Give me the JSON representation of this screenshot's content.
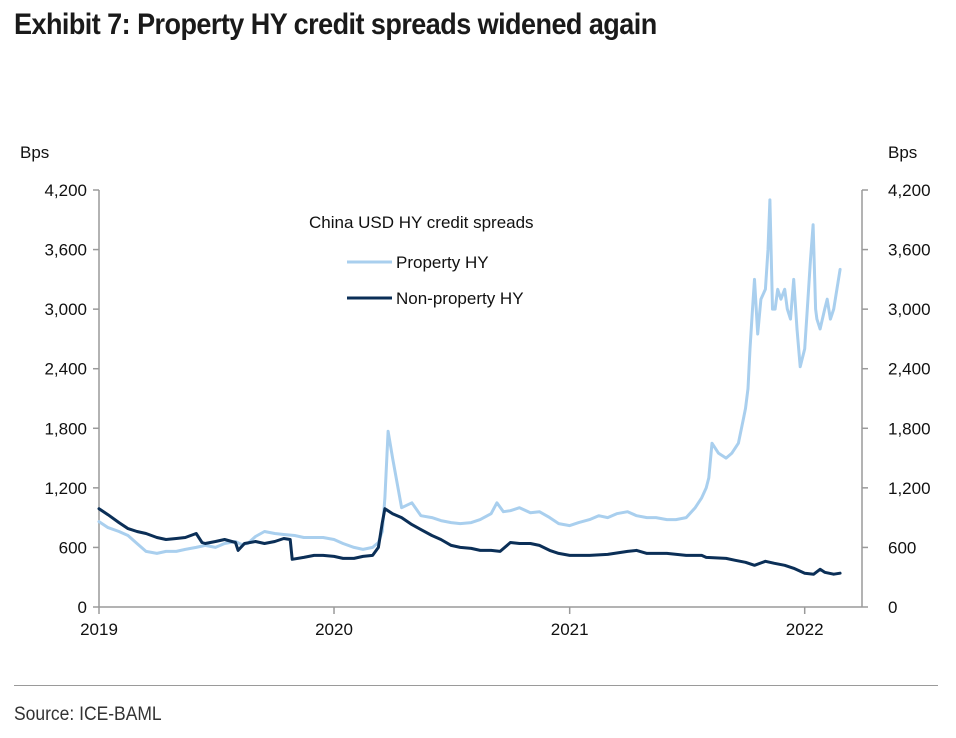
{
  "header": {
    "title": "Exhibit 7: Property HY credit spreads widened again"
  },
  "footer": {
    "source": "Source: ICE-BAML"
  },
  "chart_data": {
    "type": "line",
    "title": "Exhibit 7: Property HY credit spreads widened again",
    "legend_title": "China USD HY credit spreads",
    "legend_placement": "top-center",
    "left_axis_unit": "Bps",
    "right_axis_unit": "Bps",
    "ylim": [
      0,
      4200
    ],
    "yticks": [
      "0",
      "600",
      "1,200",
      "1,800",
      "2,400",
      "3,000",
      "3,600",
      "4,200"
    ],
    "ytick_values": [
      0,
      600,
      1200,
      1800,
      2400,
      3000,
      3600,
      4200
    ],
    "xlim": [
      "2019-01-01",
      "2022-03-31"
    ],
    "xticks": [
      "2019",
      "2020",
      "2021",
      "2022"
    ],
    "xtick_dates": [
      "2019-01-01",
      "2020-01-01",
      "2021-01-01",
      "2022-01-01"
    ],
    "grid": false,
    "colors": {
      "property": "#a9cfee",
      "nonproperty": "#0b2f57",
      "axis": "#9a9a9a"
    },
    "series": [
      {
        "name": "Property HY",
        "x": [
          "2019-01-01",
          "2019-01-15",
          "2019-02-01",
          "2019-02-15",
          "2019-03-01",
          "2019-03-15",
          "2019-04-01",
          "2019-04-15",
          "2019-05-01",
          "2019-05-15",
          "2019-06-01",
          "2019-06-15",
          "2019-07-01",
          "2019-07-15",
          "2019-08-01",
          "2019-08-10",
          "2019-08-20",
          "2019-09-01",
          "2019-09-15",
          "2019-10-01",
          "2019-10-15",
          "2019-11-01",
          "2019-11-15",
          "2019-12-01",
          "2019-12-15",
          "2020-01-01",
          "2020-01-15",
          "2020-02-01",
          "2020-02-15",
          "2020-03-01",
          "2020-03-10",
          "2020-03-16",
          "2020-03-20",
          "2020-03-25",
          "2020-04-01",
          "2020-04-15",
          "2020-05-01",
          "2020-05-15",
          "2020-06-01",
          "2020-06-15",
          "2020-07-01",
          "2020-07-15",
          "2020-08-01",
          "2020-08-15",
          "2020-09-01",
          "2020-09-10",
          "2020-09-20",
          "2020-10-01",
          "2020-10-15",
          "2020-11-01",
          "2020-11-15",
          "2020-12-01",
          "2020-12-15",
          "2021-01-01",
          "2021-01-15",
          "2021-02-01",
          "2021-02-15",
          "2021-03-01",
          "2021-03-15",
          "2021-04-01",
          "2021-04-15",
          "2021-05-01",
          "2021-05-15",
          "2021-06-01",
          "2021-06-15",
          "2021-07-01",
          "2021-07-15",
          "2021-07-25",
          "2021-08-01",
          "2021-08-05",
          "2021-08-10",
          "2021-08-20",
          "2021-09-01",
          "2021-09-10",
          "2021-09-20",
          "2021-09-28",
          "2021-10-01",
          "2021-10-05",
          "2021-10-08",
          "2021-10-12",
          "2021-10-15",
          "2021-10-20",
          "2021-10-25",
          "2021-11-01",
          "2021-11-05",
          "2021-11-08",
          "2021-11-12",
          "2021-11-16",
          "2021-11-20",
          "2021-11-25",
          "2021-12-01",
          "2021-12-05",
          "2021-12-10",
          "2021-12-15",
          "2021-12-20",
          "2021-12-25",
          "2022-01-01",
          "2022-01-05",
          "2022-01-10",
          "2022-01-14",
          "2022-01-18",
          "2022-01-20",
          "2022-01-25",
          "2022-02-01",
          "2022-02-05",
          "2022-02-10",
          "2022-02-15",
          "2022-02-20",
          "2022-02-25"
        ],
        "values": [
          860,
          800,
          760,
          720,
          640,
          560,
          540,
          560,
          560,
          580,
          600,
          620,
          600,
          640,
          660,
          630,
          640,
          710,
          760,
          740,
          730,
          720,
          700,
          700,
          700,
          680,
          640,
          600,
          580,
          600,
          650,
          760,
          1100,
          1770,
          1500,
          1000,
          1050,
          920,
          900,
          870,
          850,
          840,
          850,
          880,
          940,
          1050,
          960,
          970,
          1000,
          950,
          960,
          900,
          840,
          820,
          850,
          880,
          920,
          900,
          940,
          960,
          920,
          900,
          900,
          880,
          880,
          900,
          1000,
          1100,
          1200,
          1300,
          1650,
          1550,
          1500,
          1550,
          1650,
          1900,
          2000,
          2200,
          2600,
          3000,
          3300,
          2750,
          3100,
          3200,
          3600,
          4100,
          3000,
          3000,
          3200,
          3100,
          3200,
          3000,
          2900,
          3300,
          2800,
          2420,
          2600,
          3000,
          3500,
          3850,
          3000,
          2900,
          2800,
          3000,
          3100,
          2900,
          3000,
          3200,
          3400
        ]
      },
      {
        "name": "Non-property HY",
        "x": [
          "2019-01-01",
          "2019-01-15",
          "2019-02-01",
          "2019-02-15",
          "2019-03-01",
          "2019-03-15",
          "2019-04-01",
          "2019-04-15",
          "2019-05-01",
          "2019-05-15",
          "2019-06-01",
          "2019-06-10",
          "2019-06-15",
          "2019-07-01",
          "2019-07-15",
          "2019-08-01",
          "2019-08-05",
          "2019-08-15",
          "2019-09-01",
          "2019-09-15",
          "2019-10-01",
          "2019-10-15",
          "2019-10-25",
          "2019-10-28",
          "2019-11-15",
          "2019-12-01",
          "2019-12-15",
          "2020-01-01",
          "2020-01-15",
          "2020-02-01",
          "2020-02-15",
          "2020-03-01",
          "2020-03-10",
          "2020-03-16",
          "2020-03-20",
          "2020-04-01",
          "2020-04-15",
          "2020-05-01",
          "2020-05-15",
          "2020-06-01",
          "2020-06-15",
          "2020-07-01",
          "2020-07-15",
          "2020-08-01",
          "2020-08-15",
          "2020-09-01",
          "2020-09-15",
          "2020-10-01",
          "2020-10-15",
          "2020-11-01",
          "2020-11-15",
          "2020-12-01",
          "2020-12-15",
          "2021-01-01",
          "2021-02-01",
          "2021-03-01",
          "2021-04-01",
          "2021-04-15",
          "2021-05-01",
          "2021-06-01",
          "2021-07-01",
          "2021-07-25",
          "2021-08-01",
          "2021-09-01",
          "2021-09-15",
          "2021-10-01",
          "2021-10-15",
          "2021-11-01",
          "2021-11-15",
          "2021-12-01",
          "2021-12-15",
          "2022-01-01",
          "2022-01-15",
          "2022-01-25",
          "2022-02-01",
          "2022-02-15",
          "2022-02-25"
        ],
        "values": [
          990,
          930,
          850,
          790,
          760,
          740,
          700,
          680,
          690,
          700,
          740,
          650,
          640,
          660,
          680,
          650,
          570,
          640,
          660,
          640,
          660,
          690,
          680,
          480,
          500,
          520,
          520,
          510,
          490,
          490,
          510,
          520,
          600,
          850,
          990,
          940,
          900,
          830,
          780,
          720,
          680,
          620,
          600,
          590,
          570,
          570,
          560,
          650,
          640,
          640,
          620,
          570,
          540,
          520,
          520,
          530,
          560,
          570,
          540,
          540,
          520,
          520,
          500,
          490,
          470,
          450,
          420,
          460,
          440,
          420,
          390,
          340,
          330,
          380,
          350,
          330,
          340
        ]
      }
    ]
  }
}
